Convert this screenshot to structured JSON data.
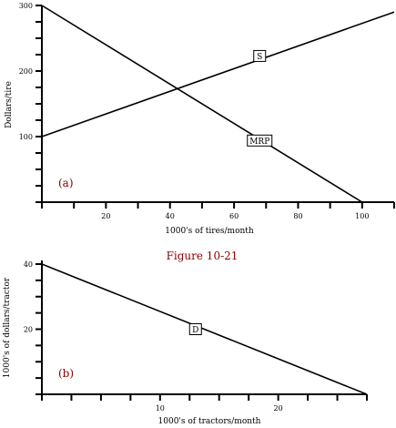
{
  "figure": {
    "caption": "Figure 10-21"
  },
  "chart_data": [
    {
      "panel": "(a)",
      "type": "line",
      "xlabel": "1000's of tires/month",
      "ylabel": "Dollars/tire",
      "xlim": [
        0,
        110
      ],
      "ylim": [
        0,
        300
      ],
      "xticks": [
        0,
        10,
        20,
        30,
        40,
        50,
        60,
        70,
        80,
        90,
        100,
        110
      ],
      "xtick_labels": [
        20,
        40,
        60,
        80,
        100
      ],
      "yticks": [
        0,
        25,
        50,
        75,
        100,
        125,
        150,
        175,
        200,
        225,
        250,
        275,
        300
      ],
      "ytick_labels": [
        100,
        200,
        300
      ],
      "series": [
        {
          "name": "S",
          "points": [
            [
              0,
              100
            ],
            [
              110,
              290
            ]
          ],
          "label_at": [
            68,
            223
          ]
        },
        {
          "name": "MRP",
          "points": [
            [
              0,
              300
            ],
            [
              100,
              0
            ]
          ],
          "label_at": [
            68,
            94
          ]
        }
      ]
    },
    {
      "panel": "(b)",
      "type": "line",
      "xlabel": "1000's of tractors/month",
      "ylabel": "1000's of dollars/tractor",
      "xlim": [
        0,
        27.5
      ],
      "ylim": [
        0,
        40
      ],
      "xticks": [
        0,
        2.5,
        5,
        7.5,
        10,
        12.5,
        15,
        17.5,
        20,
        22.5,
        25,
        27.5
      ],
      "xtick_labels": [
        10,
        20
      ],
      "yticks": [
        0,
        5,
        10,
        15,
        20,
        25,
        30,
        35,
        40
      ],
      "ytick_labels": [
        20,
        40
      ],
      "series": [
        {
          "name": "D",
          "points": [
            [
              0,
              40
            ],
            [
              27.5,
              0
            ]
          ],
          "label_at": [
            13,
            20
          ]
        }
      ]
    }
  ]
}
